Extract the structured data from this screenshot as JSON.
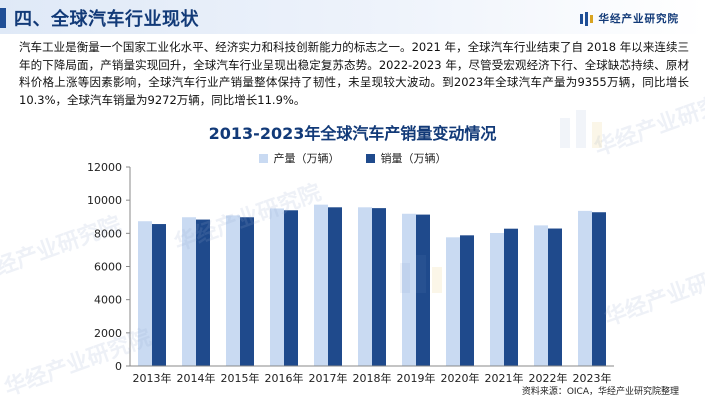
{
  "header": {
    "section_title": "四、全球汽车行业现状",
    "brand_name": "华经产业研究院"
  },
  "intro": "汽车工业是衡量一个国家工业化水平、经济实力和科技创新能力的标志之一。2021 年，全球汽车行业结束了自 2018 年以来连续三年的下降局面，产销量实现回升，全球汽车行业呈现出稳定复苏态势。2022-2023 年，尽管受宏观经济下行、全球缺芯持续、原材料价格上涨等因素影响，全球汽车行业产销量整体保持了韧性，未呈现较大波动。到2023年全球汽车产量为9355万辆，同比增长10.3%，全球汽车销量为9272万辆，同比增长11.9%。",
  "watermark_text": "华经产业研究院",
  "colors": {
    "brand_blue": "#123a78",
    "production": "#c9daf2",
    "sales": "#1f4a8c",
    "axis": "#888888"
  },
  "chart_data": {
    "type": "bar",
    "title": "2013-2023年全球汽车产销量变动情况",
    "categories": [
      "2013年",
      "2014年",
      "2015年",
      "2016年",
      "2017年",
      "2018年",
      "2019年",
      "2020年",
      "2021年",
      "2022年",
      "2023年"
    ],
    "series": [
      {
        "name": "产量（万辆）",
        "values": [
          8730,
          8970,
          9080,
          9500,
          9730,
          9570,
          9180,
          7760,
          8020,
          8480,
          9355
        ]
      },
      {
        "name": "销量（万辆）",
        "values": [
          8560,
          8830,
          8970,
          9390,
          9570,
          9520,
          9130,
          7880,
          8280,
          8290,
          9272
        ]
      }
    ],
    "ylim": [
      0,
      12000
    ],
    "yticks": [
      0,
      2000,
      4000,
      6000,
      8000,
      10000,
      12000
    ],
    "grid": false,
    "legend_position": "top-center"
  },
  "source": "资料来源：OICA，华经产业研究院整理"
}
